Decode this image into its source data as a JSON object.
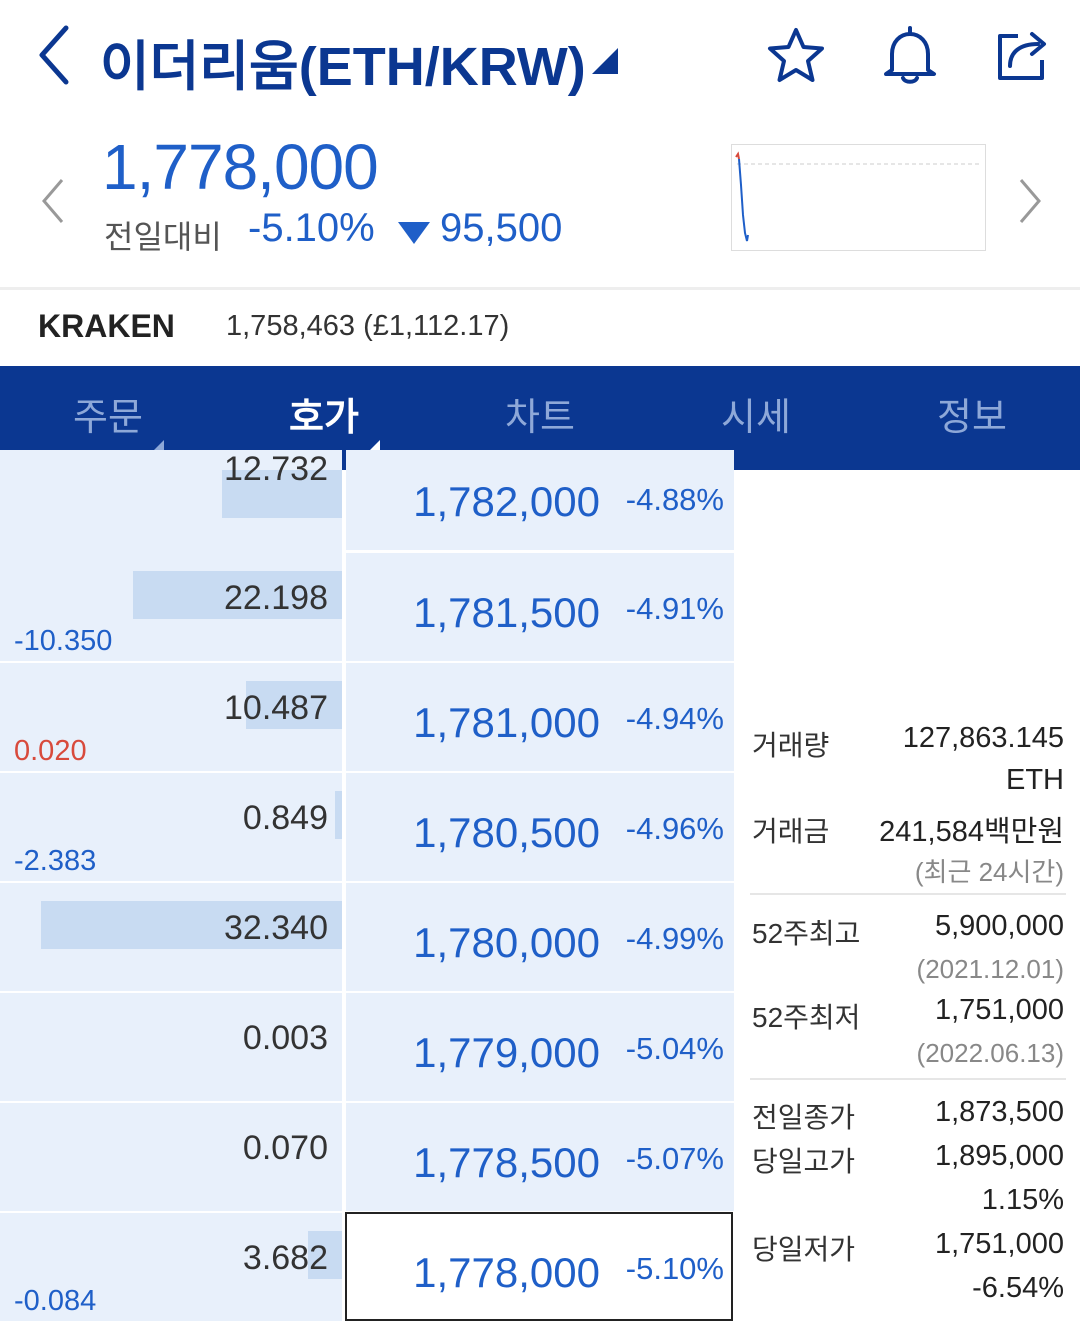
{
  "header": {
    "title": "이더리움(ETH/KRW)",
    "icons": [
      "chevron-left-icon",
      "star-icon",
      "bell-icon",
      "share-icon"
    ]
  },
  "price": {
    "current": "1,778,000",
    "compare_label": "전일대비",
    "change_pct": "-5.10%",
    "change_amount": "95,500",
    "direction": "down"
  },
  "kraken": {
    "name": "KRAKEN",
    "value": "1,758,463 (£1,112.17)"
  },
  "tabs": [
    {
      "label": "주문",
      "active": false,
      "has_caret": true
    },
    {
      "label": "호가",
      "active": true,
      "has_caret": true
    },
    {
      "label": "차트",
      "active": false,
      "has_caret": false
    },
    {
      "label": "시세",
      "active": false,
      "has_caret": false
    },
    {
      "label": "정보",
      "active": false,
      "has_caret": false
    }
  ],
  "orderbook": {
    "rows": [
      {
        "qty": "12.732",
        "change": "",
        "price": "1,782,000",
        "pct": "-4.88%",
        "bar": 0.35
      },
      {
        "qty": "22.198",
        "change": "-10.350",
        "price": "1,781,500",
        "pct": "-4.91%",
        "bar": 0.61
      },
      {
        "qty": "10.487",
        "change": "0.020",
        "price": "1,781,000",
        "pct": "-4.94%",
        "bar": 0.28
      },
      {
        "qty": "0.849",
        "change": "-2.383",
        "price": "1,780,500",
        "pct": "-4.96%",
        "bar": 0.02
      },
      {
        "qty": "32.340",
        "change": "",
        "price": "1,780,000",
        "pct": "-4.99%",
        "bar": 0.88
      },
      {
        "qty": "0.003",
        "change": "",
        "price": "1,779,000",
        "pct": "-5.04%",
        "bar": 0.0
      },
      {
        "qty": "0.070",
        "change": "",
        "price": "1,778,500",
        "pct": "-5.07%",
        "bar": 0.0
      },
      {
        "qty": "3.682",
        "change": "-0.084",
        "price": "1,778,000",
        "pct": "-5.10%",
        "bar": 0.1
      }
    ]
  },
  "info": {
    "volume_label": "거래량",
    "volume_value": "127,863.145",
    "volume_unit": "ETH",
    "amount_label": "거래금",
    "amount_value": "241,584백만원",
    "amount_note": "(최근 24시간)",
    "high52_label": "52주최고",
    "high52_value": "5,900,000",
    "high52_date": "(2021.12.01)",
    "low52_label": "52주최저",
    "low52_value": "1,751,000",
    "low52_date": "(2022.06.13)",
    "prev_close_label": "전일종가",
    "prev_close_value": "1,873,500",
    "day_high_label": "당일고가",
    "day_high_value": "1,895,000",
    "day_high_pct": "1.15%",
    "day_low_label": "당일저가",
    "day_low_value": "1,751,000",
    "day_low_pct": "-6.54%"
  },
  "colors": {
    "navy": "#0b3791",
    "blue": "#1f5fc8",
    "red": "#d84a3c",
    "cell_bg": "#e8f0fb",
    "bar": "#c8dbf2"
  }
}
